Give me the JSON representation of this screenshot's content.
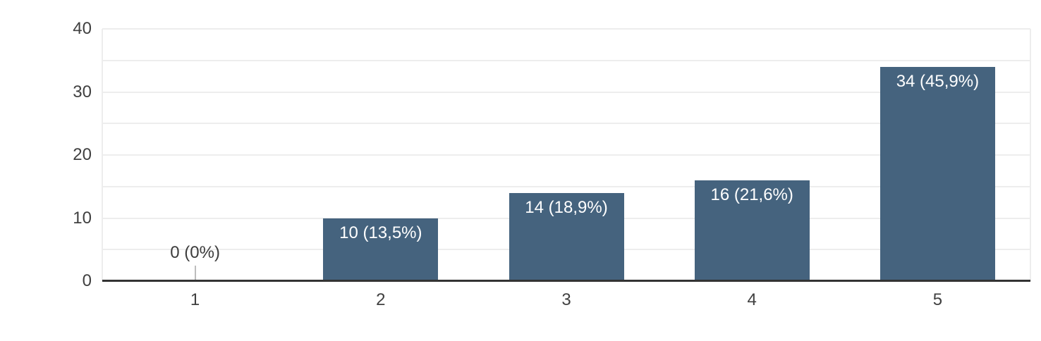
{
  "chart_data": {
    "type": "bar",
    "title": "",
    "xlabel": "",
    "ylabel": "",
    "categories": [
      "1",
      "2",
      "3",
      "4",
      "5"
    ],
    "values": [
      0,
      10,
      14,
      16,
      34
    ],
    "bar_labels": [
      "0 (0%)",
      "10 (13,5%)",
      "14 (18,9%)",
      "16 (21,6%)",
      "34 (45,9%)"
    ],
    "y_ticks": [
      "0",
      "10",
      "20",
      "30",
      "40"
    ],
    "y_tick_values": [
      0,
      10,
      20,
      30,
      40
    ],
    "ylim": [
      0,
      40
    ],
    "gridline_step": 5,
    "grid": true,
    "legend_position": "none",
    "colors": {
      "bar": "#45637e",
      "bar_label_text": "#ffffff",
      "outside_label_text": "#3c3c3c",
      "axis_text": "#404040",
      "gridline": "#ededed",
      "plot_border": "#ededed",
      "baseline": "#333333",
      "zero_stub": "#bdbdbd",
      "background": "#ffffff"
    }
  }
}
